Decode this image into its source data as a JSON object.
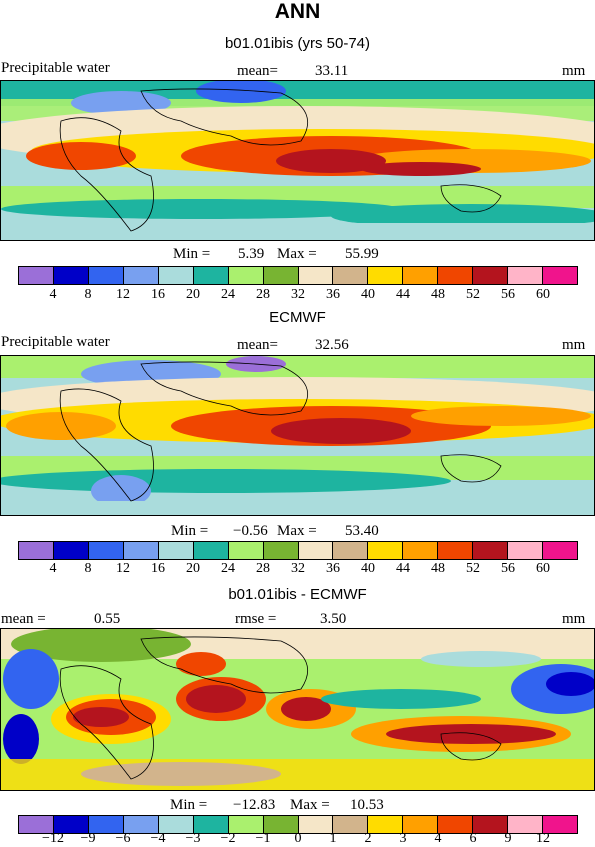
{
  "title": "ANN",
  "panels": [
    {
      "subtitle": "b01.01ibis (yrs 50-74)",
      "left_label": "Precipitable water",
      "mean_label": "mean=",
      "mean_value": "33.11",
      "units": "mm",
      "min_label": "Min =",
      "min_value": "5.39",
      "max_label": "Max =",
      "max_value": "55.99",
      "colorbar_ticks": [
        "4",
        "8",
        "12",
        "16",
        "20",
        "24",
        "28",
        "32",
        "36",
        "40",
        "44",
        "48",
        "52",
        "56",
        "60"
      ],
      "colorbar_colors": [
        "#9b6fd8",
        "#0000c8",
        "#3264f0",
        "#78a0f0",
        "#aadcdc",
        "#1eb4a0",
        "#aaf06e",
        "#78b432",
        "#f5e6c8",
        "#d2b48c",
        "#ffdc00",
        "#ffa000",
        "#f04600",
        "#b4141e",
        "#ffb4c8",
        "#f0148c"
      ]
    },
    {
      "subtitle": "ECMWF",
      "left_label": "Precipitable water",
      "mean_label": "mean=",
      "mean_value": "32.56",
      "units": "mm",
      "min_label": "Min =",
      "min_value": "−0.56",
      "max_label": "Max =",
      "max_value": "53.40",
      "colorbar_ticks": [
        "4",
        "8",
        "12",
        "16",
        "20",
        "24",
        "28",
        "32",
        "36",
        "40",
        "44",
        "48",
        "52",
        "56",
        "60"
      ],
      "colorbar_colors": [
        "#9b6fd8",
        "#0000c8",
        "#3264f0",
        "#78a0f0",
        "#aadcdc",
        "#1eb4a0",
        "#aaf06e",
        "#78b432",
        "#f5e6c8",
        "#d2b48c",
        "#ffdc00",
        "#ffa000",
        "#f04600",
        "#b4141e",
        "#ffb4c8",
        "#f0148c"
      ]
    },
    {
      "subtitle": "b01.01ibis - ECMWF",
      "left_label": "mean =",
      "mean_label": "rmse =",
      "left_value": "0.55",
      "mean_value": "3.50",
      "units": "mm",
      "min_label": "Min =",
      "min_value": "−12.83",
      "max_label": "Max =",
      "max_value": "10.53",
      "colorbar_ticks": [
        "−12",
        "−9",
        "−6",
        "−4",
        "−3",
        "−2",
        "−1",
        "0",
        "1",
        "2",
        "3",
        "4",
        "6",
        "9",
        "12"
      ],
      "colorbar_colors": [
        "#9b6fd8",
        "#0000c8",
        "#3264f0",
        "#78a0f0",
        "#aadcdc",
        "#1eb4a0",
        "#aaf06e",
        "#78b432",
        "#f5e6c8",
        "#d2b48c",
        "#ffdc00",
        "#ffa000",
        "#f04600",
        "#b4141e",
        "#ffb4c8",
        "#f0148c"
      ]
    }
  ]
}
